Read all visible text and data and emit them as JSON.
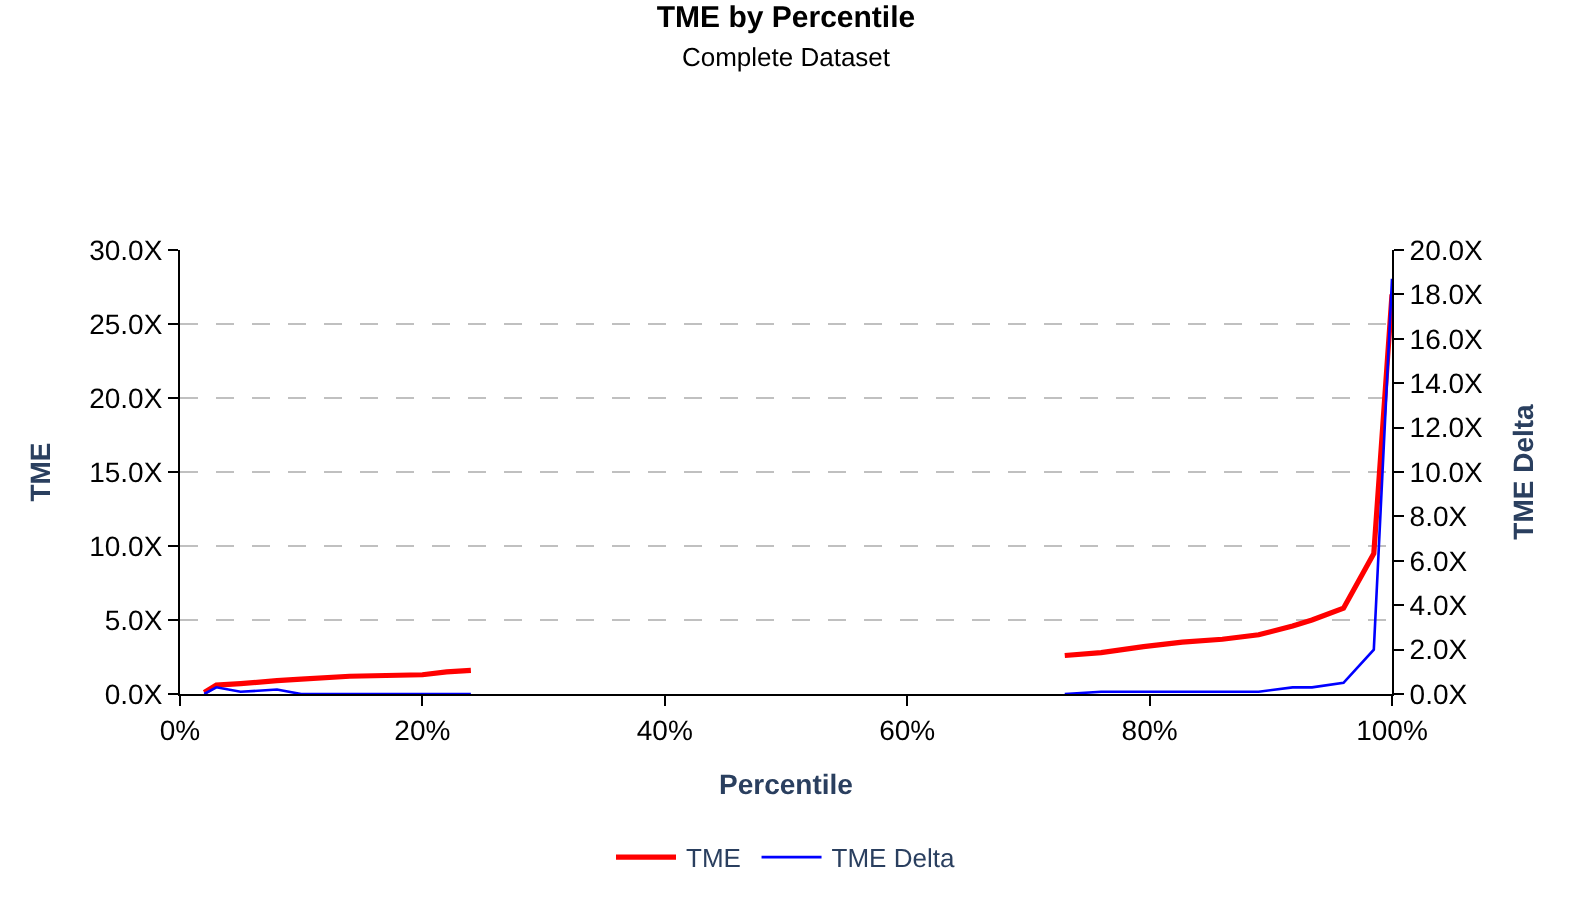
{
  "chart_data": {
    "type": "line",
    "title": "TME by Percentile",
    "subtitle": "Complete Dataset",
    "xlabel": "Percentile",
    "ylabel": "TME",
    "y2label": "TME Delta",
    "xlim": [
      0,
      100
    ],
    "xticks": [
      {
        "value": 0,
        "label": "0%"
      },
      {
        "value": 20,
        "label": "20%"
      },
      {
        "value": 40,
        "label": "40%"
      },
      {
        "value": 60,
        "label": "60%"
      },
      {
        "value": 80,
        "label": "80%"
      },
      {
        "value": 100,
        "label": "100%"
      }
    ],
    "ylim": [
      0,
      30
    ],
    "yticks": [
      {
        "value": 0,
        "label": "0.0X"
      },
      {
        "value": 5,
        "label": "5.0X"
      },
      {
        "value": 10,
        "label": "10.0X"
      },
      {
        "value": 15,
        "label": "15.0X"
      },
      {
        "value": 20,
        "label": "20.0X"
      },
      {
        "value": 25,
        "label": "25.0X"
      },
      {
        "value": 30,
        "label": "30.0X"
      }
    ],
    "y2lim": [
      0,
      20
    ],
    "y2ticks": [
      {
        "value": 0,
        "label": "0.0X"
      },
      {
        "value": 2,
        "label": "2.0X"
      },
      {
        "value": 4,
        "label": "4.0X"
      },
      {
        "value": 6,
        "label": "6.0X"
      },
      {
        "value": 8,
        "label": "8.0X"
      },
      {
        "value": 10,
        "label": "10.0X"
      },
      {
        "value": 12,
        "label": "12.0X"
      },
      {
        "value": 14,
        "label": "14.0X"
      },
      {
        "value": 16,
        "label": "16.0X"
      },
      {
        "value": 18,
        "label": "18.0X"
      },
      {
        "value": 20,
        "label": "20.0X"
      }
    ],
    "x": [
      2,
      3,
      5,
      8,
      10,
      14,
      20,
      22,
      24,
      48,
      73,
      76,
      79.5,
      82.7,
      86,
      89,
      91.8,
      93.4,
      96,
      98.5,
      100
    ],
    "series": [
      {
        "name": "TME",
        "color": "#ff0000",
        "values": [
          0.1,
          0.6,
          0.7,
          0.9,
          1.0,
          1.2,
          1.3,
          1.5,
          1.6,
          null,
          2.6,
          2.8,
          3.2,
          3.5,
          3.7,
          4.0,
          4.6,
          5.0,
          5.8,
          9.5,
          27
        ]
      },
      {
        "name": "TME Delta",
        "color": "#0000ff",
        "axis": "y2",
        "values": [
          0.0,
          0.3,
          0.1,
          0.2,
          0.0,
          0.0,
          0.0,
          0.0,
          0.0,
          null,
          0.0,
          0.1,
          0.1,
          0.1,
          0.1,
          0.1,
          0.3,
          0.3,
          0.5,
          2.0,
          18.7
        ]
      }
    ],
    "grid": "y",
    "legend": "bottom",
    "marker": "none",
    "line_style": "solid"
  }
}
